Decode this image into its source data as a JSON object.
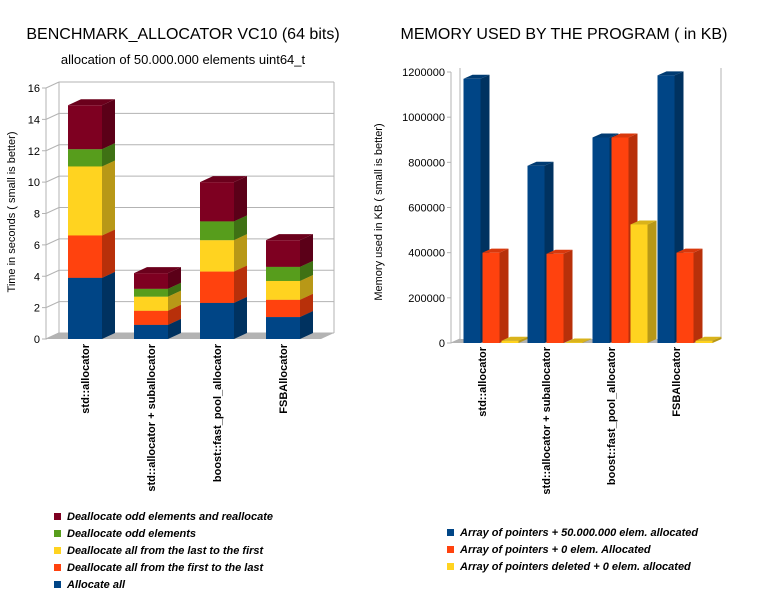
{
  "chart_data": [
    {
      "type": "bar",
      "stacked": true,
      "style": "3d",
      "title": "BENCHMARK_ALLOCATOR VC10 (64 bits)",
      "subtitle": "allocation of 50.000.000 elements uint64_t",
      "xlabel": "",
      "ylabel": "Time in seconds ( small is better)",
      "ylim": [
        0,
        16
      ],
      "yticks": [
        "0",
        "2",
        "4",
        "6",
        "8",
        "10",
        "12",
        "14",
        "16"
      ],
      "grid": true,
      "legend_position": "bottom",
      "categories": [
        "std::allocator",
        "std::allocator + suballocator",
        "boost::fast_pool_allocator",
        "FSBAllocator"
      ],
      "series": [
        {
          "name": "Allocate all",
          "color": "#004586",
          "values": [
            3.9,
            0.9,
            2.3,
            1.4
          ]
        },
        {
          "name": "Deallocate all from the first to the last",
          "color": "#ff420e",
          "values": [
            2.7,
            0.9,
            2.0,
            1.1
          ]
        },
        {
          "name": "Deallocate all from the last to the first",
          "color": "#ffd320",
          "values": [
            4.4,
            0.9,
            2.0,
            1.2
          ]
        },
        {
          "name": "Deallocate odd elements",
          "color": "#579d1c",
          "values": [
            1.1,
            0.5,
            1.2,
            0.9
          ]
        },
        {
          "name": "Deallocate odd elements and reallocate",
          "color": "#7e0021",
          "values": [
            2.8,
            1.0,
            2.5,
            1.7
          ]
        }
      ]
    },
    {
      "type": "bar",
      "stacked": false,
      "style": "3d",
      "title": "MEMORY USED BY THE PROGRAM ( in KB)",
      "xlabel": "",
      "ylabel": "Memory used in KB ( small is better)",
      "ylim": [
        0,
        1200000
      ],
      "yticks": [
        "0",
        "200000",
        "400000",
        "600000",
        "800000",
        "1000000",
        "1200000"
      ],
      "grid": false,
      "legend_position": "bottom",
      "categories": [
        "std::allocator",
        "std::allocator + suballocator",
        "boost::fast_pool_allocator",
        "FSBAllocator"
      ],
      "series": [
        {
          "name": "Array of pointers +  50.000.000 elem. allocated",
          "color": "#004586",
          "values": [
            1170000,
            785000,
            910000,
            1185000
          ]
        },
        {
          "name": "Array of pointers +  0 elem. Allocated",
          "color": "#ff420e",
          "values": [
            400000,
            395000,
            910000,
            400000
          ]
        },
        {
          "name": "Array of pointers deleted +   0 elem. allocated",
          "color": "#ffd320",
          "values": [
            10000,
            2000,
            525000,
            10000
          ]
        }
      ]
    }
  ]
}
